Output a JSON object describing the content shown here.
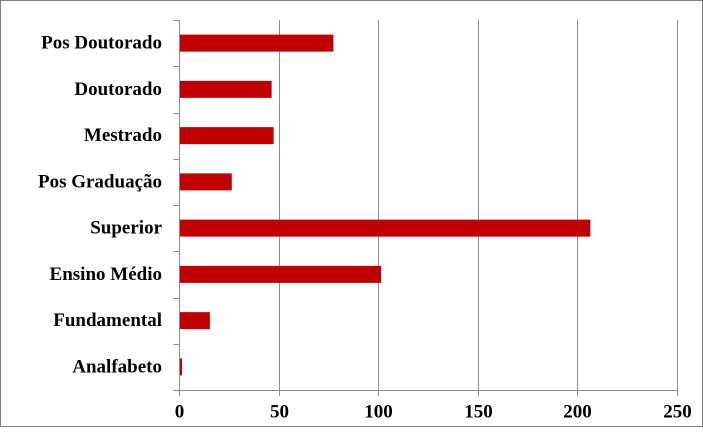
{
  "chart_data": {
    "type": "bar",
    "orientation": "horizontal",
    "categories": [
      "Pos Doutorado",
      "Doutorado",
      "Mestrado",
      "Pos Graduação",
      "Superior",
      "Ensino Médio",
      "Fundamental",
      "Analfabeto"
    ],
    "values": [
      77,
      46,
      47,
      26,
      206,
      101,
      15,
      1
    ],
    "xlim": [
      0,
      250
    ],
    "xticks": [
      0,
      50,
      100,
      150,
      200,
      250
    ],
    "xtick_labels": [
      "0",
      "50",
      "100",
      "150",
      "200",
      "250"
    ],
    "grid": true,
    "legend": "none",
    "bar_color": "#C00000",
    "title": "",
    "xlabel": "",
    "ylabel": ""
  }
}
